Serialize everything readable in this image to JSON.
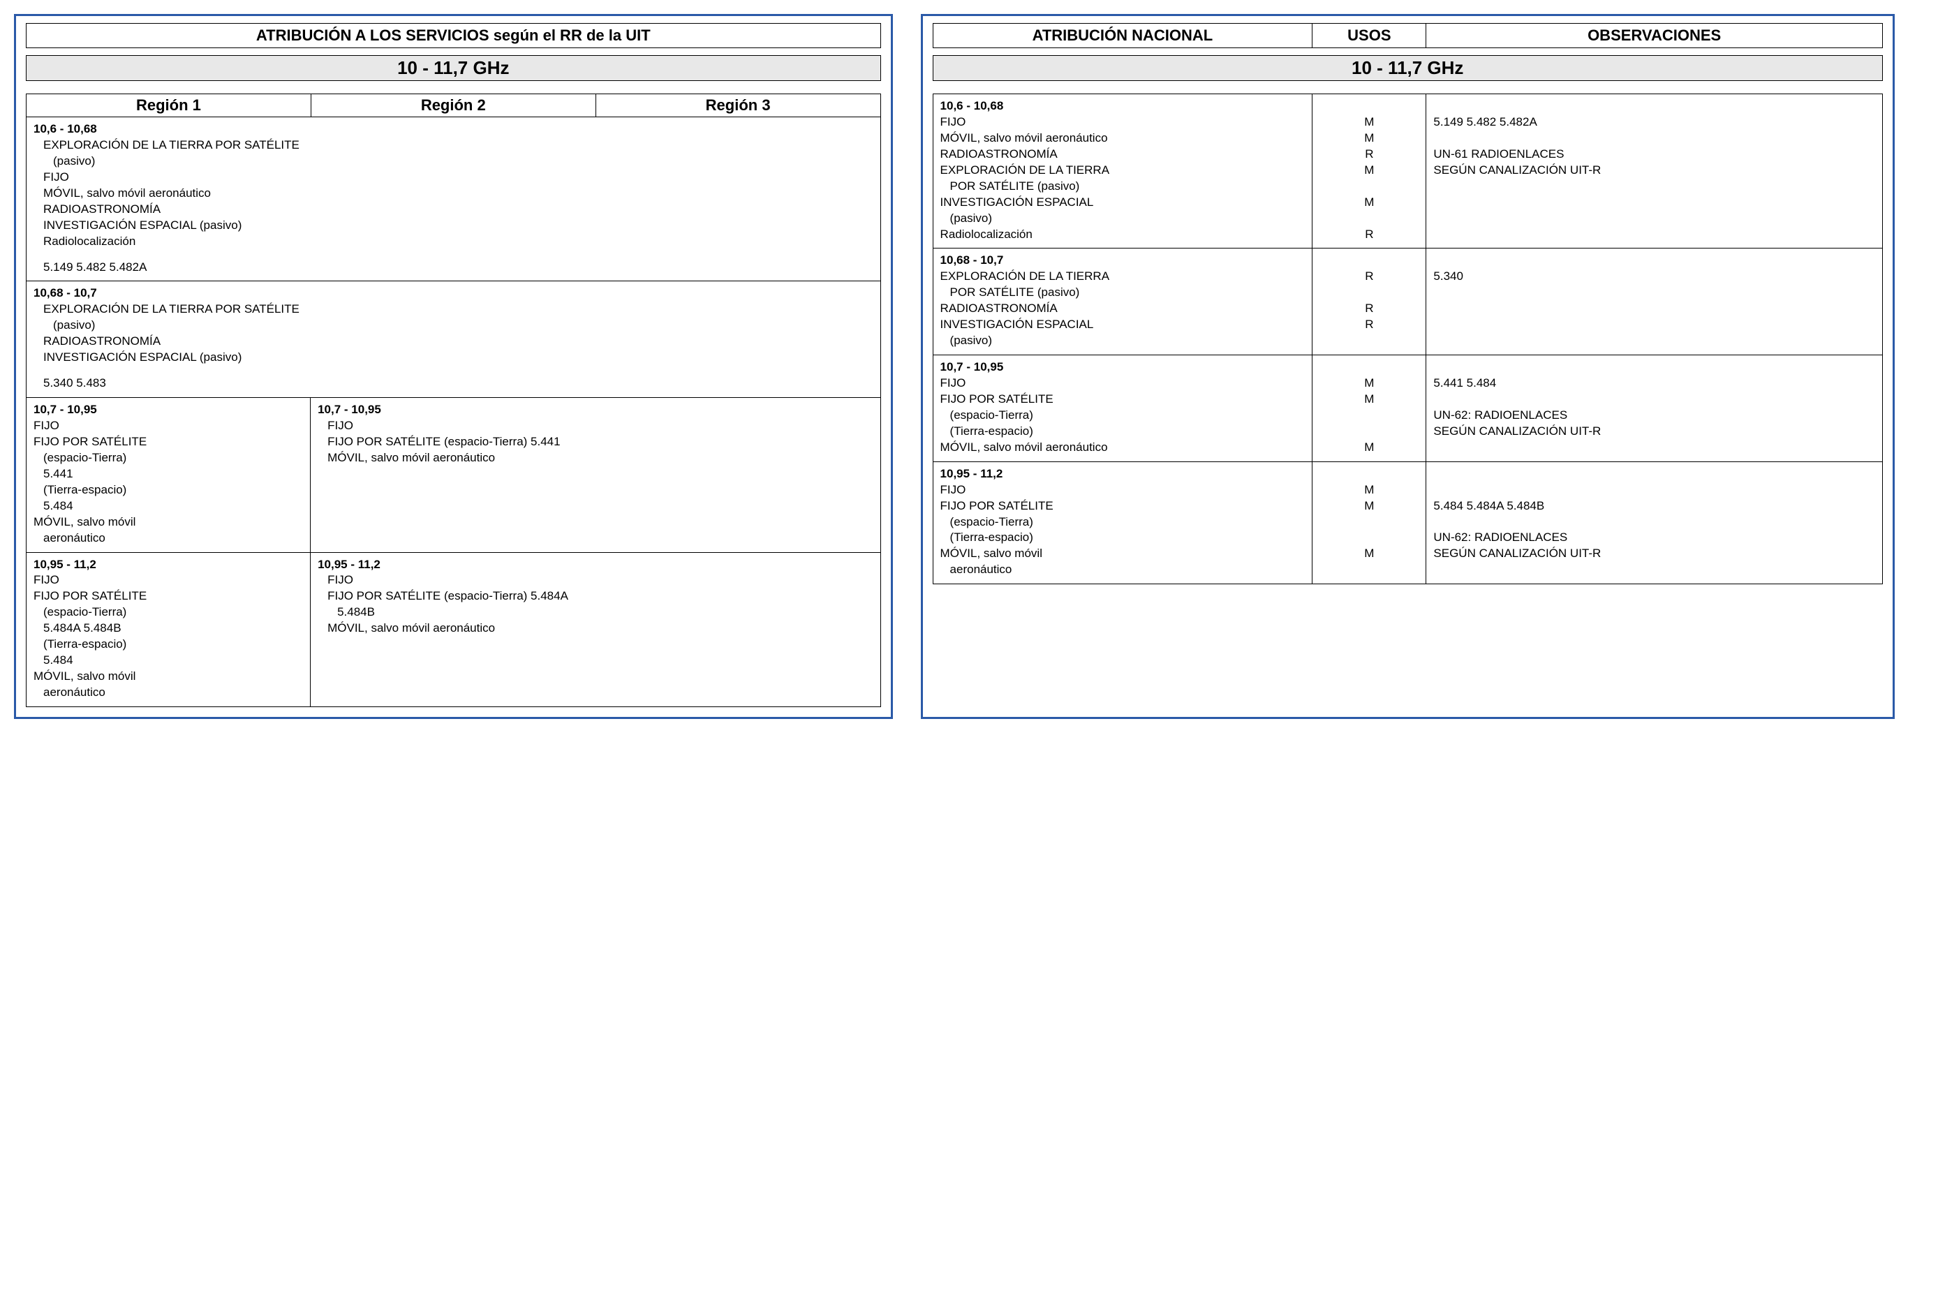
{
  "colors": {
    "border": "#2b5aa8",
    "band_bg": "#e8e8e8",
    "text": "#000000"
  },
  "left": {
    "title": "ATRIBUCIÓN A LOS SERVICIOS según el RR de la UIT",
    "band": "10 - 11,7 GHz",
    "region_headers": [
      "Región 1",
      "Región 2",
      "Región 3"
    ],
    "rows": [
      {
        "layout": "full",
        "freq": "10,6 - 10,68",
        "lines": [
          {
            "t": "EXPLORACIÓN DE LA TIERRA POR SATÉLITE",
            "i": 1
          },
          {
            "t": "(pasivo)",
            "i": 2
          },
          {
            "t": "FIJO",
            "i": 1
          },
          {
            "t": "MÓVIL, salvo móvil aeronáutico",
            "i": 1
          },
          {
            "t": "RADIOASTRONOMÍA",
            "i": 1
          },
          {
            "t": "INVESTIGACIÓN ESPACIAL (pasivo)",
            "i": 1
          },
          {
            "t": "Radiolocalización",
            "i": 1
          },
          {
            "t": "5.149 5.482 5.482A",
            "i": 1,
            "gap": true
          }
        ]
      },
      {
        "layout": "full",
        "freq": "10,68 - 10,7",
        "lines": [
          {
            "t": "EXPLORACIÓN DE LA TIERRA POR SATÉLITE",
            "i": 1
          },
          {
            "t": "(pasivo)",
            "i": 2
          },
          {
            "t": "RADIOASTRONOMÍA",
            "i": 1
          },
          {
            "t": "INVESTIGACIÓN ESPACIAL (pasivo)",
            "i": 1
          },
          {
            "t": "5.340 5.483",
            "i": 1,
            "gap": true
          }
        ]
      },
      {
        "layout": "split",
        "colA": {
          "freq": "10,7 - 10,95",
          "lines": [
            {
              "t": "FIJO",
              "i": 0
            },
            {
              "t": "FIJO POR SATÉLITE",
              "i": 0
            },
            {
              "t": "(espacio-Tierra)",
              "i": 1
            },
            {
              "t": "5.441",
              "i": 1
            },
            {
              "t": "(Tierra-espacio)",
              "i": 1
            },
            {
              "t": "5.484",
              "i": 1
            },
            {
              "t": "MÓVIL, salvo móvil",
              "i": 0
            },
            {
              "t": "aeronáutico",
              "i": 1
            }
          ]
        },
        "colBC": {
          "freq": "10,7 - 10,95",
          "lines": [
            {
              "t": "FIJO",
              "i": 1
            },
            {
              "t": "FIJO POR SATÉLITE (espacio-Tierra) 5.441",
              "i": 1
            },
            {
              "t": "MÓVIL, salvo móvil aeronáutico",
              "i": 1
            }
          ]
        }
      },
      {
        "layout": "split",
        "colA": {
          "freq": "10,95 - 11,2",
          "lines": [
            {
              "t": "FIJO",
              "i": 0
            },
            {
              "t": "FIJO POR SATÉLITE",
              "i": 0
            },
            {
              "t": "(espacio-Tierra)",
              "i": 1
            },
            {
              "t": "5.484A 5.484B",
              "i": 1
            },
            {
              "t": "(Tierra-espacio)",
              "i": 1
            },
            {
              "t": "5.484",
              "i": 1
            },
            {
              "t": "MÓVIL, salvo móvil",
              "i": 0
            },
            {
              "t": "aeronáutico",
              "i": 1
            }
          ]
        },
        "colBC": {
          "freq": "10,95 - 11,2",
          "lines": [
            {
              "t": "FIJO",
              "i": 1
            },
            {
              "t": "FIJO POR SATÉLITE (espacio-Tierra) 5.484A",
              "i": 1
            },
            {
              "t": "5.484B",
              "i": 2
            },
            {
              "t": "MÓVIL, salvo móvil aeronáutico",
              "i": 1
            }
          ]
        }
      }
    ]
  },
  "right": {
    "headers": [
      "ATRIBUCIÓN NACIONAL",
      "USOS",
      "OBSERVACIONES"
    ],
    "band": "10 - 11,7 GHz",
    "rows": [
      {
        "freq": "10,6 - 10,68",
        "services": [
          {
            "t": "FIJO",
            "i": 0,
            "u": "M"
          },
          {
            "t": "MÓVIL, salvo móvil aeronáutico",
            "i": 0,
            "u": "M"
          },
          {
            "t": "RADIOASTRONOMÍA",
            "i": 0,
            "u": "R"
          },
          {
            "t": "EXPLORACIÓN DE LA TIERRA",
            "i": 0,
            "u": "M"
          },
          {
            "t": "POR SATÉLITE (pasivo)",
            "i": 1,
            "u": ""
          },
          {
            "t": "INVESTIGACIÓN ESPACIAL",
            "i": 0,
            "u": "M"
          },
          {
            "t": "(pasivo)",
            "i": 1,
            "u": ""
          },
          {
            "t": "Radiolocalización",
            "i": 0,
            "u": "R"
          }
        ],
        "obs": [
          {
            "t": "5.149 5.482 5.482A"
          },
          {
            "t": ""
          },
          {
            "t": "UN-61 RADIOENLACES"
          },
          {
            "t": "SEGÚN CANALIZACIÓN UIT-R"
          }
        ]
      },
      {
        "freq": "10,68 - 10,7",
        "services": [
          {
            "t": "EXPLORACIÓN DE LA TIERRA",
            "i": 0,
            "u": "R"
          },
          {
            "t": "POR SATÉLITE (pasivo)",
            "i": 1,
            "u": ""
          },
          {
            "t": "RADIOASTRONOMÍA",
            "i": 0,
            "u": "R"
          },
          {
            "t": "INVESTIGACIÓN ESPACIAL",
            "i": 0,
            "u": "R"
          },
          {
            "t": "(pasivo)",
            "i": 1,
            "u": ""
          }
        ],
        "obs": [
          {
            "t": "5.340"
          }
        ]
      },
      {
        "freq": "10,7 - 10,95",
        "services": [
          {
            "t": "FIJO",
            "i": 0,
            "u": "M"
          },
          {
            "t": "FIJO POR SATÉLITE",
            "i": 0,
            "u": "M"
          },
          {
            "t": "(espacio-Tierra)",
            "i": 1,
            "u": ""
          },
          {
            "t": "(Tierra-espacio)",
            "i": 1,
            "u": ""
          },
          {
            "t": "MÓVIL, salvo móvil aeronáutico",
            "i": 0,
            "u": "M"
          }
        ],
        "obs": [
          {
            "t": "5.441 5.484"
          },
          {
            "t": ""
          },
          {
            "t": "UN-62: RADIOENLACES"
          },
          {
            "t": "SEGÚN CANALIZACIÓN UIT-R"
          }
        ]
      },
      {
        "freq": "10,95 - 11,2",
        "services": [
          {
            "t": "FIJO",
            "i": 0,
            "u": "M"
          },
          {
            "t": "FIJO POR SATÉLITE",
            "i": 0,
            "u": "M"
          },
          {
            "t": "(espacio-Tierra)",
            "i": 1,
            "u": ""
          },
          {
            "t": "(Tierra-espacio)",
            "i": 1,
            "u": ""
          },
          {
            "t": "MÓVIL, salvo móvil",
            "i": 0,
            "u": "M"
          },
          {
            "t": "aeronáutico",
            "i": 1,
            "u": ""
          }
        ],
        "obs": [
          {
            "t": ""
          },
          {
            "t": "5.484 5.484A 5.484B"
          },
          {
            "t": ""
          },
          {
            "t": "UN-62: RADIOENLACES"
          },
          {
            "t": "SEGÚN CANALIZACIÓN UIT-R"
          }
        ]
      }
    ]
  }
}
